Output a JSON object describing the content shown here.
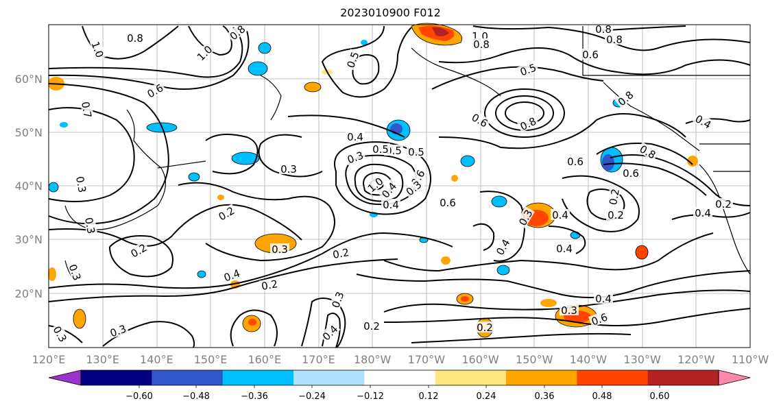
{
  "title": "2023010900 F012",
  "map": {
    "lat_labels": [
      "60°N",
      "50°N",
      "40°N",
      "30°N",
      "20°N"
    ],
    "lon_labels": [
      "120°E",
      "130°E",
      "140°E",
      "150°E",
      "160°E",
      "170°E",
      "180°W",
      "170°W",
      "160°W",
      "150°W",
      "140°W",
      "130°W",
      "120°W",
      "110°W"
    ],
    "contour_labels": [
      "0.8",
      "1.0",
      "0.8",
      "1.0",
      "1.0",
      "0.8",
      "0.8",
      "0.6",
      "0.5",
      "0.6",
      "0.8",
      "0.6",
      "0.7",
      "0.8",
      "0.6",
      "0.4",
      "0.4",
      "0.5",
      "0.3",
      "0.3",
      "0.6",
      "1.0",
      "0.6",
      "0.4",
      "0.2",
      "0.3",
      "0.4",
      "0.3",
      "0.2",
      "0.3",
      "0.2",
      "0.4",
      "0.2",
      "0.3",
      "0.2",
      "0.4",
      "0.2",
      "0.3",
      "0.4",
      "0.3",
      "0.2",
      "0.4",
      "0.6",
      "0.3",
      "0.2",
      "0.3",
      "0.5",
      "0.3",
      "0.8",
      "0.6",
      "0.8",
      "0.5",
      "0.5",
      "0.4",
      "0.4",
      "0.4",
      "0.2",
      "0.3"
    ]
  },
  "colorbar": {
    "ticks": [
      "−0.60",
      "−0.48",
      "−0.36",
      "−0.24",
      "−0.12",
      "0.12",
      "0.24",
      "0.36",
      "0.48",
      "0.60"
    ],
    "colors": [
      "#9933cc",
      "#000080",
      "#3355cc",
      "#00bfff",
      "#b0e0fa",
      "#ffffff",
      "#ffe680",
      "#ffa500",
      "#ff4500",
      "#b22222",
      "#ff88aa"
    ]
  }
}
